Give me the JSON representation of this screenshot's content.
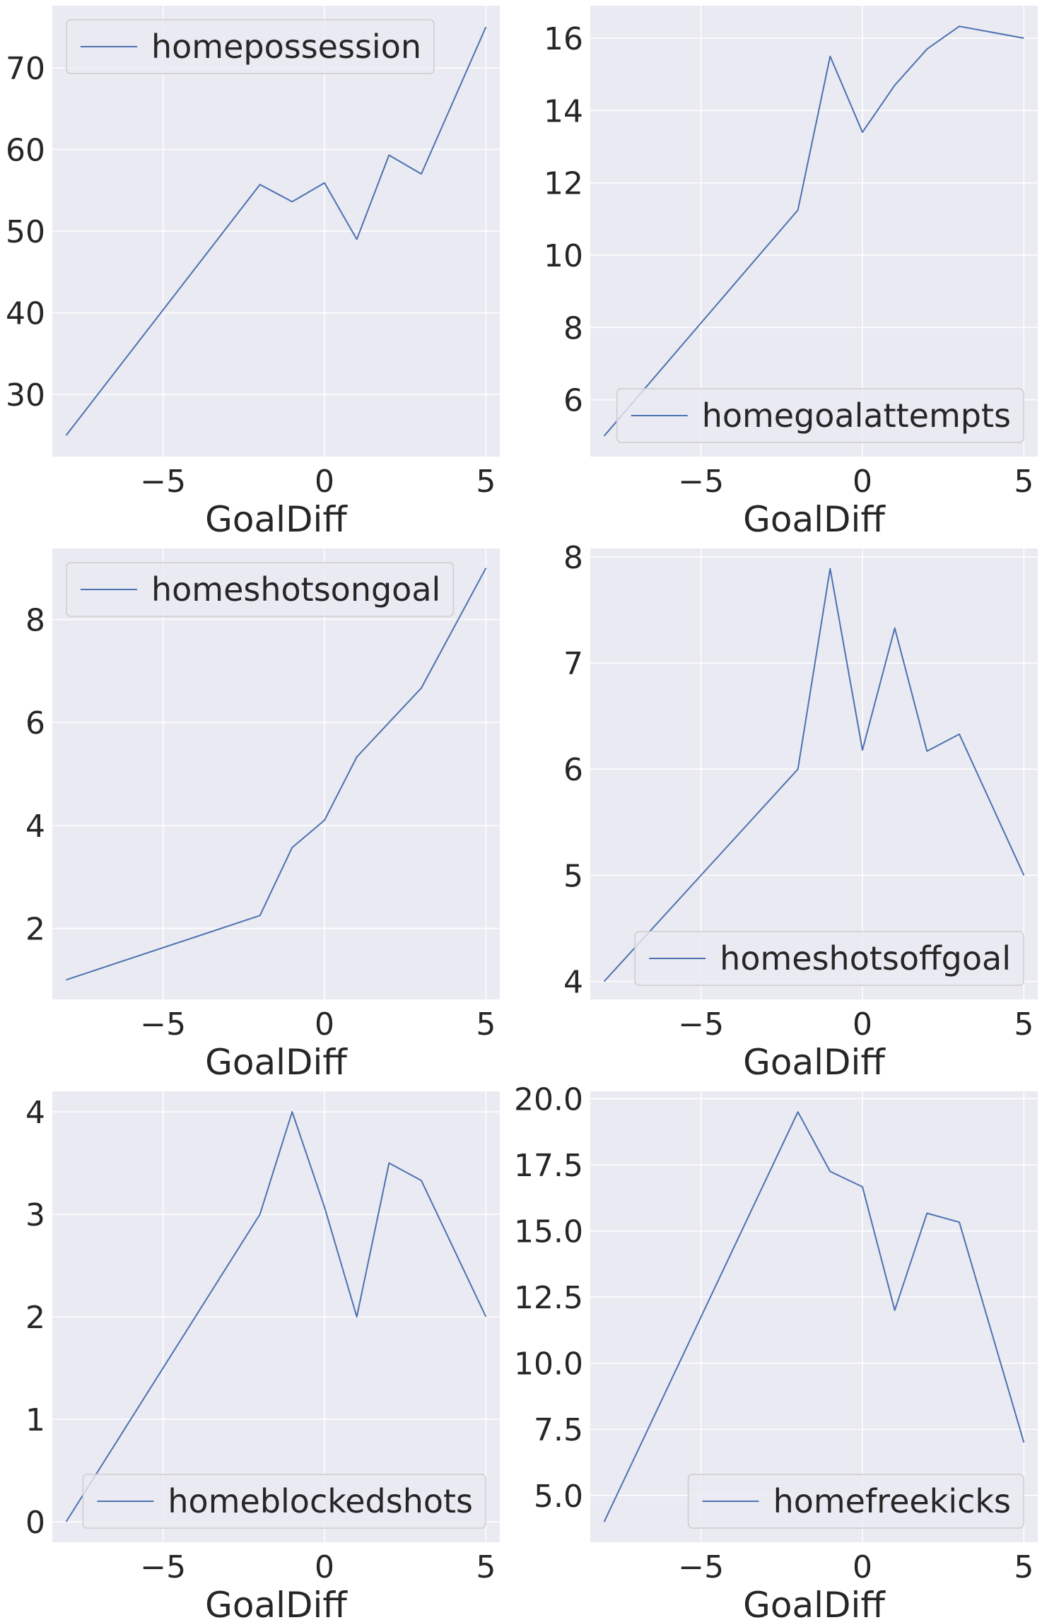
{
  "chart_data": [
    {
      "type": "line",
      "xlabel": "GoalDiff",
      "ylabel": "",
      "x": [
        -8,
        -2,
        -1,
        0,
        1,
        2,
        3,
        5
      ],
      "series": [
        {
          "name": "homepossession",
          "values": [
            25.0,
            55.7,
            53.6,
            55.9,
            49.0,
            59.3,
            57.0,
            75.0
          ]
        }
      ],
      "xlim": [
        -8.43,
        5.43
      ],
      "ylim": [
        22.4,
        77.6
      ],
      "xticks": [
        -5,
        0,
        5
      ],
      "yticks": [
        30,
        40,
        50,
        60,
        70
      ],
      "legend": "top-left",
      "grid": true
    },
    {
      "type": "line",
      "xlabel": "GoalDiff",
      "ylabel": "",
      "x": [
        -8,
        -2,
        -1,
        0,
        1,
        2,
        3,
        5
      ],
      "series": [
        {
          "name": "homegoalattempts",
          "values": [
            5.0,
            11.25,
            15.5,
            13.4,
            14.7,
            15.7,
            16.33,
            16.0
          ]
        }
      ],
      "xlim": [
        -8.43,
        5.43
      ],
      "ylim": [
        4.43,
        16.9
      ],
      "xticks": [
        -5,
        0,
        5
      ],
      "yticks": [
        6,
        8,
        10,
        12,
        14,
        16
      ],
      "legend": "bottom-right",
      "grid": true
    },
    {
      "type": "line",
      "xlabel": "GoalDiff",
      "ylabel": "",
      "x": [
        -8,
        -2,
        -1,
        0,
        1,
        2,
        3,
        5
      ],
      "series": [
        {
          "name": "homeshotsongoal",
          "values": [
            1.0,
            2.25,
            3.57,
            4.1,
            5.33,
            6.0,
            6.67,
            9.0
          ]
        }
      ],
      "xlim": [
        -8.43,
        5.43
      ],
      "ylim": [
        0.62,
        9.38
      ],
      "xticks": [
        -5,
        0,
        5
      ],
      "yticks": [
        2,
        4,
        6,
        8
      ],
      "legend": "top-left",
      "grid": true
    },
    {
      "type": "line",
      "xlabel": "GoalDiff",
      "ylabel": "",
      "x": [
        -8,
        -2,
        -1,
        0,
        1,
        2,
        3,
        5
      ],
      "series": [
        {
          "name": "homeshotsoffgoal",
          "values": [
            4.0,
            6.0,
            7.89,
            6.18,
            7.33,
            6.17,
            6.33,
            5.0
          ]
        }
      ],
      "xlim": [
        -8.43,
        5.43
      ],
      "ylim": [
        3.83,
        8.08
      ],
      "xticks": [
        -5,
        0,
        5
      ],
      "yticks": [
        4,
        5,
        6,
        7,
        8
      ],
      "legend": "bottom-right",
      "grid": true
    },
    {
      "type": "line",
      "xlabel": "GoalDiff",
      "ylabel": "",
      "x": [
        -8,
        -2,
        -1,
        0,
        1,
        2,
        3,
        5
      ],
      "series": [
        {
          "name": "homeblockedshots",
          "values": [
            0.0,
            3.0,
            4.0,
            3.07,
            2.0,
            3.5,
            3.33,
            2.0
          ]
        }
      ],
      "xlim": [
        -8.43,
        5.43
      ],
      "ylim": [
        -0.2,
        4.2
      ],
      "xticks": [
        -5,
        0,
        5
      ],
      "yticks": [
        0,
        1,
        2,
        3,
        4
      ],
      "legend": "bottom-right",
      "grid": true
    },
    {
      "type": "line",
      "xlabel": "GoalDiff",
      "ylabel": "",
      "x": [
        -8,
        -2,
        -1,
        0,
        1,
        2,
        3,
        5
      ],
      "series": [
        {
          "name": "homefreekicks",
          "values": [
            4.0,
            19.5,
            17.25,
            16.67,
            12.0,
            15.67,
            15.33,
            7.0
          ]
        }
      ],
      "xlim": [
        -8.43,
        5.43
      ],
      "ylim": [
        3.23,
        20.28
      ],
      "xticks": [
        -5,
        0,
        5
      ],
      "yticks": [
        5.0,
        7.5,
        10.0,
        12.5,
        15.0,
        17.5,
        20.0
      ],
      "legend": "bottom-right",
      "grid": true
    }
  ],
  "colors": {
    "line": "#4c72b0",
    "plot_background": "#eaeaf2",
    "grid": "#ffffff",
    "text": "#262626",
    "legend_border": "#cccccc"
  }
}
